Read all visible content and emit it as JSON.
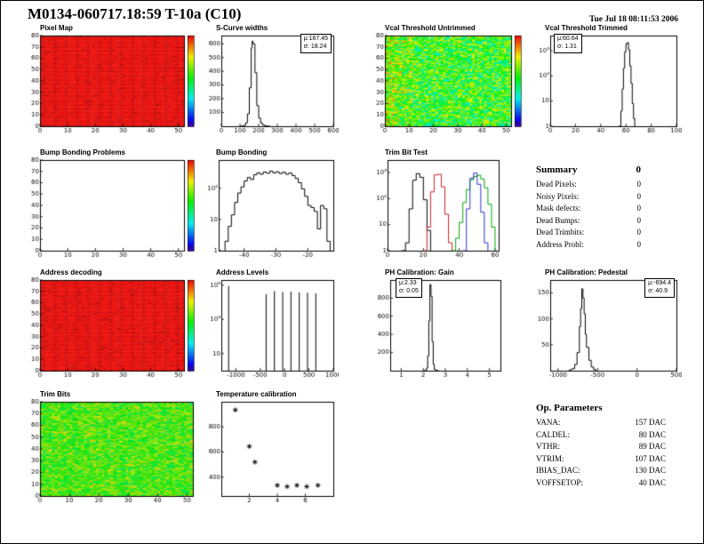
{
  "page": {
    "title": "M0134-060717.18:59 T-10a (C10)",
    "datetime": "Tue Jul 18 08:11:53 2006"
  },
  "summary": {
    "header": "Summary",
    "header_value": "0",
    "rows": [
      {
        "label": "Dead Pixels:",
        "value": "0"
      },
      {
        "label": "Noisy Pixels:",
        "value": "0"
      },
      {
        "label": "Mask defects:",
        "value": "0"
      },
      {
        "label": "Dead Bumps:",
        "value": "0"
      },
      {
        "label": "Dead Trimbits:",
        "value": "0"
      },
      {
        "label": "Address Probl:",
        "value": "0"
      }
    ]
  },
  "op_parameters": {
    "header": "Op. Parameters",
    "rows": [
      {
        "label": "VANA:",
        "value": "157 DAC"
      },
      {
        "label": "CALDEL:",
        "value": "80 DAC"
      },
      {
        "label": "VTHR:",
        "value": "89 DAC"
      },
      {
        "label": "VTRIM:",
        "value": "107 DAC"
      },
      {
        "label": "IBIAS_DAC:",
        "value": "130 DAC"
      },
      {
        "label": "VOFFSETOP:",
        "value": "40 DAC"
      }
    ]
  },
  "chart_data": [
    {
      "id": "pixel-map",
      "title": "Pixel Map",
      "type": "heatmap",
      "palette": "red",
      "colorbar": true,
      "grid": [
        52,
        80
      ],
      "ml": 14,
      "xlim": [
        0,
        52
      ],
      "ylim": [
        0,
        80
      ],
      "xticks": [
        0,
        10,
        20,
        30,
        40,
        50
      ],
      "yticks": [
        0,
        10,
        20,
        30,
        40,
        50,
        60,
        70,
        80
      ]
    },
    {
      "id": "s-curve-widths",
      "title": "S-Curve widths",
      "type": "hist",
      "ml": 20,
      "ylog": false,
      "xlim": [
        0,
        600
      ],
      "ylim": [
        0,
        660
      ],
      "xticks": [
        0,
        100,
        200,
        300,
        400,
        500,
        600
      ],
      "yticks": [
        100,
        200,
        300,
        400,
        500,
        600
      ],
      "stats": [
        "μ:167.45",
        "σ: 18.24"
      ],
      "steps": [
        [
          100,
          0
        ],
        [
          110,
          2
        ],
        [
          120,
          6
        ],
        [
          130,
          25
        ],
        [
          140,
          90
        ],
        [
          150,
          280
        ],
        [
          160,
          570
        ],
        [
          165,
          620
        ],
        [
          170,
          600
        ],
        [
          180,
          390
        ],
        [
          190,
          150
        ],
        [
          200,
          60
        ],
        [
          210,
          25
        ],
        [
          220,
          10
        ],
        [
          230,
          4
        ],
        [
          240,
          2
        ],
        [
          250,
          1
        ],
        [
          260,
          0
        ]
      ]
    },
    {
      "id": "vcal-threshold-untrimmed",
      "title": "Vcal Threshold Untrimmed",
      "type": "heatmap",
      "palette": "thermal",
      "colorbar": true,
      "grid": [
        52,
        80
      ],
      "ml": 14,
      "xlim": [
        0,
        52
      ],
      "ylim": [
        0,
        80
      ],
      "xticks": [
        0,
        10,
        20,
        30,
        40,
        50
      ],
      "yticks": [
        0,
        10,
        20,
        30,
        40,
        50,
        60,
        70,
        80
      ]
    },
    {
      "id": "vcal-threshold-trimmed",
      "title": "Vcal Threshold Trimmed",
      "type": "hist",
      "ml": 20,
      "ylog": true,
      "xlim": [
        0,
        100
      ],
      "ylim": [
        1,
        4000
      ],
      "xticks": [
        0,
        20,
        40,
        60,
        80,
        100
      ],
      "yticks": [
        {
          "v": 1,
          "l": "1"
        },
        {
          "v": 10,
          "l": "10"
        },
        {
          "v": 100,
          "l": "10²"
        },
        {
          "v": 1000,
          "l": "10³"
        }
      ],
      "stats": [
        "μ:60.64",
        "σ: 1.31"
      ],
      "steps": [
        [
          54,
          0
        ],
        [
          55,
          1
        ],
        [
          56,
          4
        ],
        [
          57,
          30
        ],
        [
          58,
          200
        ],
        [
          59,
          900
        ],
        [
          60,
          1900
        ],
        [
          61,
          2100
        ],
        [
          62,
          1100
        ],
        [
          63,
          250
        ],
        [
          64,
          50
        ],
        [
          65,
          8
        ],
        [
          66,
          2
        ],
        [
          67,
          0
        ]
      ]
    },
    {
      "id": "bump-bonding-problems",
      "title": "Bump Bonding Problems",
      "type": "heatmap",
      "palette": "empty",
      "colorbar": true,
      "grid": [
        52,
        80
      ],
      "ml": 14,
      "xlim": [
        0,
        52
      ],
      "ylim": [
        0,
        80
      ],
      "xticks": [
        0,
        10,
        20,
        30,
        40,
        50
      ],
      "yticks": [
        0,
        10,
        20,
        30,
        40,
        50,
        60,
        70,
        80
      ]
    },
    {
      "id": "bump-bonding",
      "title": "Bump Bonding",
      "type": "hist",
      "ml": 17,
      "ylog": true,
      "xlim": [
        -48,
        -12
      ],
      "ylim": [
        1,
        800
      ],
      "xticks": [
        -40,
        -30,
        -20
      ],
      "yticks": [
        {
          "v": 1,
          "l": "1"
        },
        {
          "v": 10,
          "l": "10"
        },
        {
          "v": 100,
          "l": "10²"
        }
      ],
      "steps": [
        [
          -46,
          2
        ],
        [
          -45,
          6
        ],
        [
          -44,
          14
        ],
        [
          -43,
          35
        ],
        [
          -42,
          70
        ],
        [
          -41,
          110
        ],
        [
          -40,
          170
        ],
        [
          -39,
          220
        ],
        [
          -38,
          190
        ],
        [
          -37,
          270
        ],
        [
          -36,
          310
        ],
        [
          -35,
          280
        ],
        [
          -34,
          330
        ],
        [
          -33,
          300
        ],
        [
          -32,
          350
        ],
        [
          -31,
          310
        ],
        [
          -30,
          335
        ],
        [
          -29,
          295
        ],
        [
          -28,
          325
        ],
        [
          -27,
          280
        ],
        [
          -26,
          305
        ],
        [
          -25,
          255
        ],
        [
          -24,
          205
        ],
        [
          -23,
          150
        ],
        [
          -22,
          95
        ],
        [
          -21,
          55
        ],
        [
          -20,
          28
        ],
        [
          -19,
          24
        ],
        [
          -18,
          18
        ],
        [
          -17,
          5
        ],
        [
          -16,
          28
        ],
        [
          -15,
          22
        ],
        [
          -14,
          2
        ],
        [
          -13,
          0
        ]
      ]
    },
    {
      "id": "trim-bit-test",
      "title": "Trim Bit Test",
      "type": "multihist",
      "ml": 17,
      "ylog": true,
      "xlim": [
        0,
        62
      ],
      "ylim": [
        1,
        3000
      ],
      "xticks": [
        0,
        20,
        40,
        60
      ],
      "yticks": [
        {
          "v": 1,
          "l": "1"
        },
        {
          "v": 10,
          "l": "10"
        },
        {
          "v": 100,
          "l": "10²"
        },
        {
          "v": 1000,
          "l": "10³"
        }
      ],
      "series": [
        {
          "name": "black",
          "color": "#000000",
          "steps": [
            [
              8,
              0
            ],
            [
              10,
              2
            ],
            [
              12,
              40
            ],
            [
              14,
              500
            ],
            [
              16,
              900
            ],
            [
              18,
              650
            ],
            [
              20,
              90
            ],
            [
              22,
              6
            ],
            [
              24,
              0
            ]
          ]
        },
        {
          "name": "red",
          "color": "#cc2222",
          "steps": [
            [
              20,
              0
            ],
            [
              22,
              8
            ],
            [
              24,
              180
            ],
            [
              26,
              800
            ],
            [
              28,
              850
            ],
            [
              30,
              280
            ],
            [
              32,
              25
            ],
            [
              34,
              2
            ],
            [
              36,
              0
            ]
          ]
        },
        {
          "name": "green",
          "color": "#00aa00",
          "steps": [
            [
              36,
              0
            ],
            [
              38,
              3
            ],
            [
              40,
              12
            ],
            [
              42,
              70
            ],
            [
              44,
              220
            ],
            [
              46,
              520
            ],
            [
              48,
              700
            ],
            [
              50,
              780
            ],
            [
              52,
              560
            ],
            [
              54,
              260
            ],
            [
              56,
              60
            ],
            [
              58,
              8
            ],
            [
              60,
              0
            ]
          ]
        },
        {
          "name": "blue",
          "color": "#3333cc",
          "steps": [
            [
              42,
              0
            ],
            [
              44,
              40
            ],
            [
              46,
              600
            ],
            [
              48,
              950
            ],
            [
              50,
              350
            ],
            [
              52,
              30
            ],
            [
              54,
              2
            ],
            [
              56,
              0
            ]
          ]
        }
      ]
    },
    {
      "id": "address-decoding",
      "title": "Address decoding",
      "type": "heatmap",
      "palette": "red",
      "colorbar": true,
      "grid": [
        52,
        80
      ],
      "ml": 14,
      "xlim": [
        0,
        52
      ],
      "ylim": [
        0,
        80
      ],
      "xticks": [
        0,
        10,
        20,
        30,
        40,
        50
      ],
      "yticks": [
        0,
        10,
        20,
        30,
        40,
        50,
        60,
        70,
        80
      ]
    },
    {
      "id": "address-levels",
      "title": "Address Levels",
      "type": "spikes",
      "ml": 20,
      "ylog": true,
      "xlim": [
        -1300,
        1000
      ],
      "ylim": [
        1,
        200000
      ],
      "xticks": [
        -1000,
        -500,
        0,
        500,
        1000
      ],
      "yticks": [
        {
          "v": 10,
          "l": "10"
        },
        {
          "v": 1000,
          "l": "10³"
        },
        {
          "v": 100000,
          "l": "10⁵"
        }
      ],
      "spikes": [
        [
          -1150,
          90000
        ],
        [
          -380,
          30000
        ],
        [
          -210,
          45000
        ],
        [
          -40,
          40000
        ],
        [
          130,
          42000
        ],
        [
          300,
          38000
        ],
        [
          470,
          36000
        ],
        [
          640,
          33000
        ]
      ]
    },
    {
      "id": "ph-calibration-gain",
      "title": "PH Calibration: Gain",
      "type": "hist",
      "ml": 20,
      "ylog": false,
      "xlim": [
        0.5,
        5.5
      ],
      "ylim": [
        0,
        1000
      ],
      "xticks": [
        1,
        2,
        3,
        4,
        5
      ],
      "yticks": [
        200,
        400,
        600,
        800
      ],
      "stats": [
        "μ:2.33",
        "σ: 0.05"
      ],
      "steps": [
        [
          2.0,
          0
        ],
        [
          2.1,
          4
        ],
        [
          2.15,
          30
        ],
        [
          2.2,
          160
        ],
        [
          2.25,
          550
        ],
        [
          2.3,
          950
        ],
        [
          2.35,
          820
        ],
        [
          2.4,
          320
        ],
        [
          2.45,
          70
        ],
        [
          2.5,
          15
        ],
        [
          2.55,
          4
        ],
        [
          2.6,
          1
        ],
        [
          2.7,
          0
        ]
      ]
    },
    {
      "id": "ph-calibration-pedestal",
      "title": "PH Calibration: Pedestal",
      "type": "hist",
      "ml": 20,
      "ylog": false,
      "xlim": [
        -1100,
        500
      ],
      "ylim": [
        0,
        175
      ],
      "xticks": [
        -1000,
        -500,
        0,
        500
      ],
      "yticks": [
        50,
        100,
        150
      ],
      "stats": [
        "μ:-694.4",
        "σ: 40.9"
      ],
      "steps": [
        [
          -870,
          0
        ],
        [
          -850,
          2
        ],
        [
          -820,
          4
        ],
        [
          -790,
          12
        ],
        [
          -760,
          35
        ],
        [
          -730,
          85
        ],
        [
          -715,
          120
        ],
        [
          -700,
          158
        ],
        [
          -685,
          140
        ],
        [
          -670,
          110
        ],
        [
          -655,
          70
        ],
        [
          -640,
          45
        ],
        [
          -610,
          20
        ],
        [
          -580,
          7
        ],
        [
          -550,
          2
        ],
        [
          -520,
          0
        ]
      ]
    },
    {
      "id": "trim-bits",
      "title": "Trim Bits",
      "type": "heatmap",
      "palette": "green",
      "colorbar": false,
      "grid": [
        52,
        80
      ],
      "ml": 14,
      "xlim": [
        0,
        52
      ],
      "ylim": [
        0,
        80
      ],
      "xticks": [
        0,
        10,
        20,
        30,
        40,
        50
      ],
      "yticks": [
        0,
        10,
        20,
        30,
        40,
        50,
        60,
        70,
        80
      ]
    },
    {
      "id": "temperature-calibration",
      "title": "Temperature calibration",
      "type": "scatter",
      "ml": 20,
      "ylog": false,
      "xlim": [
        0,
        8
      ],
      "ylim": [
        250,
        1000
      ],
      "xticks": [
        2,
        4,
        6
      ],
      "yticks": [
        400,
        600,
        800
      ],
      "points": [
        [
          1,
          935
        ],
        [
          2,
          645
        ],
        [
          2.4,
          520
        ],
        [
          4,
          335
        ],
        [
          4.7,
          325
        ],
        [
          5.4,
          335
        ],
        [
          6.1,
          325
        ],
        [
          6.9,
          335
        ]
      ]
    }
  ]
}
